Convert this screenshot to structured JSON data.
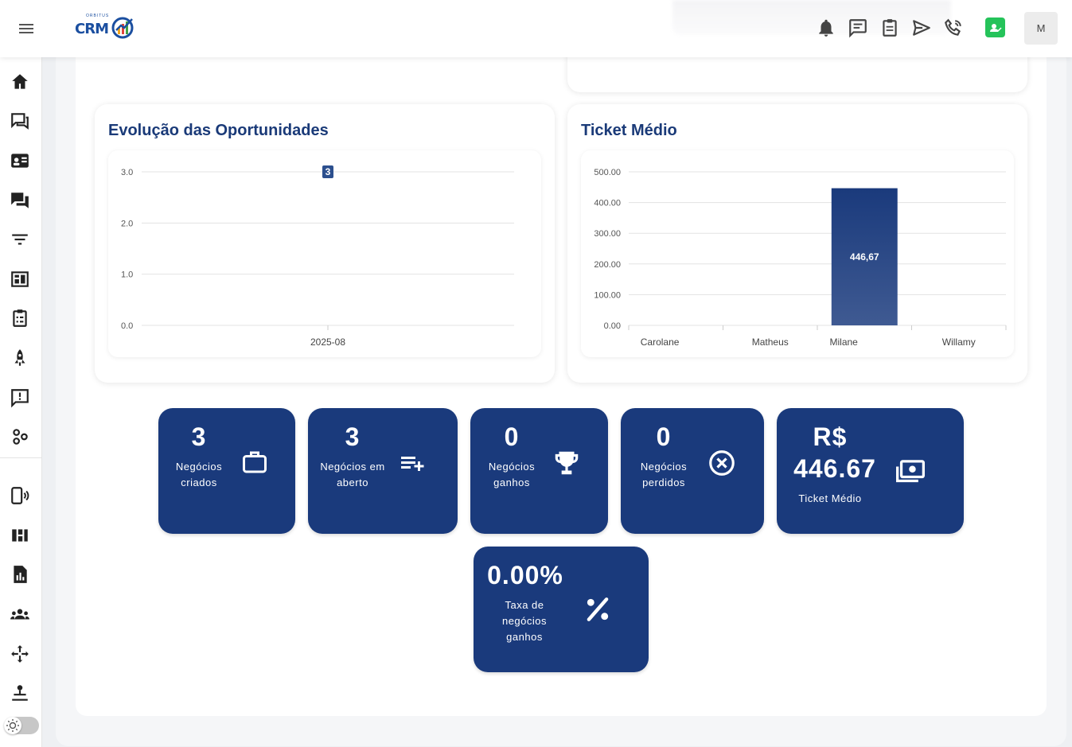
{
  "header": {
    "logo_text": "CRM",
    "logo_sub": "ORBITUS",
    "avatar_initial": "M",
    "icons": [
      "bell-icon",
      "chat-icon",
      "clipboard-icon",
      "send-icon",
      "phone-call-icon",
      "whatsapp-icon"
    ]
  },
  "sidebar": {
    "icons": [
      "home-icon",
      "forum-icon",
      "contact-card-icon",
      "chat-bubbles-icon",
      "filter-icon",
      "kanban-icon",
      "tasks-icon",
      "rocket-icon",
      "feedback-icon",
      "integrations-icon",
      "mobile-signal-icon",
      "dashboard-icon",
      "report-icon",
      "users-group-icon",
      "move-icon",
      "admin-icon"
    ]
  },
  "evolution_card": {
    "title": "Evolução das Oportunidades"
  },
  "ticket_card": {
    "title": "Ticket Médio"
  },
  "chart_data": [
    {
      "type": "line",
      "title": "Evolução das Oportunidades",
      "x": [
        "2025-08"
      ],
      "series": [
        {
          "values": [
            3
          ]
        }
      ],
      "ylim": [
        0,
        3
      ],
      "yticks": [
        "0.0",
        "1.0",
        "2.0",
        "3.0"
      ],
      "data_labels": [
        "3"
      ],
      "grid": true
    },
    {
      "type": "bar",
      "title": "Ticket Médio",
      "categories": [
        "Carolane",
        "Matheus",
        "Milane",
        "Willamy"
      ],
      "values": [
        0,
        0,
        446.67,
        0
      ],
      "ylim": [
        0,
        500
      ],
      "yticks": [
        "0.00",
        "100.00",
        "200.00",
        "300.00",
        "400.00",
        "500.00"
      ],
      "data_labels": [
        "",
        "",
        "446,67",
        ""
      ],
      "grid": true,
      "bar_color": "#1a3a7c"
    }
  ],
  "tiles": [
    {
      "value": "3",
      "label": "Negócios criados",
      "icon": "briefcase-icon"
    },
    {
      "value": "3",
      "label": "Negócios em aberto",
      "icon": "playlist-add-icon"
    },
    {
      "value": "0",
      "label": "Negócios ganhos",
      "icon": "trophy-icon"
    },
    {
      "value": "0",
      "label": "Negócios perdidos",
      "icon": "cancel-circle-icon"
    },
    {
      "value_line1": "R$",
      "value_line2": "446.67",
      "label": "Ticket Médio",
      "icon": "money-icon"
    },
    {
      "value": "0.00%",
      "label": "Taxa de negócios ganhos",
      "icon": "percent-icon"
    }
  ],
  "colors": {
    "primary": "#1a3a7c",
    "title": "#1a3a78",
    "whatsapp": "#25c35a"
  }
}
